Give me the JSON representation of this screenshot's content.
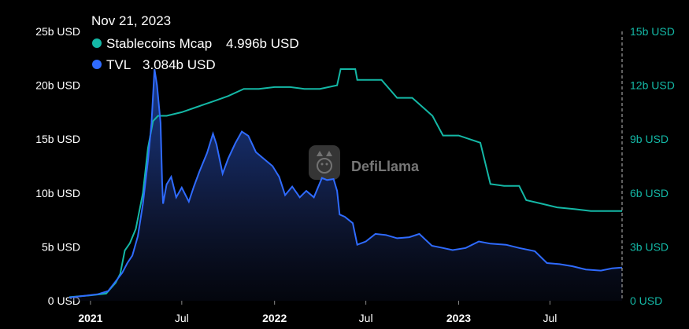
{
  "tooltip": {
    "date": "Nov 21, 2023",
    "items": [
      {
        "label": "Stablecoins Mcap",
        "value": "4.996b USD",
        "color": "#14b8a6"
      },
      {
        "label": "TVL",
        "value": "3.084b USD",
        "color": "#2f6bff"
      }
    ]
  },
  "watermark": {
    "text": "DefiLlama"
  },
  "colors": {
    "tvl": "#2f6bff",
    "stablecoins": "#14b8a6",
    "left_axis_text": "#ffffff",
    "right_axis_text": "#14b8a6"
  },
  "chart_data": {
    "type": "line",
    "x_axis": {
      "range": [
        "2020-11-20",
        "2023-11-21"
      ],
      "ticks": [
        {
          "date": "2021-01-01",
          "label": "2021",
          "bold": true
        },
        {
          "date": "2021-07-01",
          "label": "Jul",
          "bold": false
        },
        {
          "date": "2022-01-01",
          "label": "2022",
          "bold": true
        },
        {
          "date": "2022-07-01",
          "label": "Jul",
          "bold": false
        },
        {
          "date": "2023-01-01",
          "label": "2023",
          "bold": true
        },
        {
          "date": "2023-07-01",
          "label": "Jul",
          "bold": false
        }
      ]
    },
    "y_left": {
      "min": 0,
      "max": 25,
      "ticks": [
        {
          "value": 0,
          "label": "0 USD"
        },
        {
          "value": 5,
          "label": "5b USD"
        },
        {
          "value": 10,
          "label": "10b USD"
        },
        {
          "value": 15,
          "label": "15b USD"
        },
        {
          "value": 20,
          "label": "20b USD"
        },
        {
          "value": 25,
          "label": "25b USD"
        }
      ]
    },
    "y_right": {
      "min": 0,
      "max": 15,
      "ticks": [
        {
          "value": 0,
          "label": "0 USD"
        },
        {
          "value": 3,
          "label": "3b USD"
        },
        {
          "value": 6,
          "label": "6b USD"
        },
        {
          "value": 9,
          "label": "9b USD"
        },
        {
          "value": 12,
          "label": "12b USD"
        },
        {
          "value": 15,
          "label": "15b USD"
        }
      ]
    },
    "series": [
      {
        "name": "TVL",
        "axis": "left",
        "unit": "b USD",
        "points": [
          [
            "2020-11-20",
            0.3
          ],
          [
            "2020-12-20",
            0.45
          ],
          [
            "2021-01-15",
            0.6
          ],
          [
            "2021-02-05",
            0.9
          ],
          [
            "2021-02-20",
            1.8
          ],
          [
            "2021-03-05",
            2.6
          ],
          [
            "2021-03-15",
            3.5
          ],
          [
            "2021-03-25",
            4.2
          ],
          [
            "2021-04-05",
            6.0
          ],
          [
            "2021-04-15",
            9.0
          ],
          [
            "2021-04-25",
            13.0
          ],
          [
            "2021-05-02",
            16.5
          ],
          [
            "2021-05-08",
            21.5
          ],
          [
            "2021-05-13",
            20.0
          ],
          [
            "2021-05-20",
            16.5
          ],
          [
            "2021-05-23",
            11.0
          ],
          [
            "2021-05-25",
            9.0
          ],
          [
            "2021-06-01",
            10.8
          ],
          [
            "2021-06-10",
            11.5
          ],
          [
            "2021-06-20",
            9.6
          ],
          [
            "2021-07-01",
            10.5
          ],
          [
            "2021-07-15",
            9.2
          ],
          [
            "2021-07-25",
            10.6
          ],
          [
            "2021-08-05",
            12.0
          ],
          [
            "2021-08-20",
            13.7
          ],
          [
            "2021-09-01",
            15.5
          ],
          [
            "2021-09-08",
            14.5
          ],
          [
            "2021-09-20",
            11.8
          ],
          [
            "2021-10-01",
            13.2
          ],
          [
            "2021-10-15",
            14.6
          ],
          [
            "2021-10-28",
            15.7
          ],
          [
            "2021-11-10",
            15.3
          ],
          [
            "2021-11-25",
            13.8
          ],
          [
            "2021-12-10",
            13.2
          ],
          [
            "2021-12-28",
            12.5
          ],
          [
            "2022-01-10",
            11.5
          ],
          [
            "2022-01-22",
            9.8
          ],
          [
            "2022-02-05",
            10.6
          ],
          [
            "2022-02-20",
            9.6
          ],
          [
            "2022-03-05",
            10.2
          ],
          [
            "2022-03-20",
            9.6
          ],
          [
            "2022-04-05",
            11.4
          ],
          [
            "2022-04-15",
            11.2
          ],
          [
            "2022-04-28",
            11.3
          ],
          [
            "2022-05-05",
            10.2
          ],
          [
            "2022-05-10",
            8.0
          ],
          [
            "2022-05-20",
            7.8
          ],
          [
            "2022-06-05",
            7.2
          ],
          [
            "2022-06-14",
            5.2
          ],
          [
            "2022-07-01",
            5.5
          ],
          [
            "2022-07-20",
            6.2
          ],
          [
            "2022-08-10",
            6.1
          ],
          [
            "2022-09-01",
            5.8
          ],
          [
            "2022-09-25",
            5.9
          ],
          [
            "2022-10-15",
            6.2
          ],
          [
            "2022-11-09",
            5.1
          ],
          [
            "2022-12-01",
            4.9
          ],
          [
            "2022-12-20",
            4.7
          ],
          [
            "2023-01-15",
            4.9
          ],
          [
            "2023-02-10",
            5.5
          ],
          [
            "2023-03-05",
            5.3
          ],
          [
            "2023-04-05",
            5.2
          ],
          [
            "2023-05-01",
            4.9
          ],
          [
            "2023-06-01",
            4.6
          ],
          [
            "2023-06-25",
            3.5
          ],
          [
            "2023-07-20",
            3.4
          ],
          [
            "2023-08-15",
            3.2
          ],
          [
            "2023-09-10",
            2.9
          ],
          [
            "2023-10-10",
            2.8
          ],
          [
            "2023-11-01",
            3.0
          ],
          [
            "2023-11-21",
            3.084
          ]
        ]
      },
      {
        "name": "Stablecoins Mcap",
        "axis": "right",
        "unit": "b USD",
        "points": [
          [
            "2020-11-20",
            0.2
          ],
          [
            "2021-01-01",
            0.3
          ],
          [
            "2021-02-01",
            0.4
          ],
          [
            "2021-02-20",
            1.0
          ],
          [
            "2021-03-01",
            1.5
          ],
          [
            "2021-03-10",
            2.8
          ],
          [
            "2021-03-20",
            3.2
          ],
          [
            "2021-04-01",
            4.0
          ],
          [
            "2021-04-15",
            6.0
          ],
          [
            "2021-04-25",
            8.5
          ],
          [
            "2021-05-05",
            10.0
          ],
          [
            "2021-05-15",
            10.3
          ],
          [
            "2021-06-01",
            10.3
          ],
          [
            "2021-07-01",
            10.5
          ],
          [
            "2021-08-01",
            10.8
          ],
          [
            "2021-09-01",
            11.1
          ],
          [
            "2021-10-01",
            11.4
          ],
          [
            "2021-11-01",
            11.8
          ],
          [
            "2021-12-01",
            11.8
          ],
          [
            "2022-01-01",
            11.9
          ],
          [
            "2022-02-01",
            11.9
          ],
          [
            "2022-03-01",
            11.8
          ],
          [
            "2022-04-01",
            11.8
          ],
          [
            "2022-05-05",
            12.0
          ],
          [
            "2022-05-12",
            12.9
          ],
          [
            "2022-06-10",
            12.9
          ],
          [
            "2022-06-14",
            12.3
          ],
          [
            "2022-08-01",
            12.3
          ],
          [
            "2022-09-01",
            11.3
          ],
          [
            "2022-10-01",
            11.3
          ],
          [
            "2022-11-10",
            10.3
          ],
          [
            "2022-12-01",
            9.2
          ],
          [
            "2023-01-01",
            9.2
          ],
          [
            "2023-02-13",
            8.8
          ],
          [
            "2023-03-05",
            6.5
          ],
          [
            "2023-04-01",
            6.4
          ],
          [
            "2023-05-01",
            6.4
          ],
          [
            "2023-05-15",
            5.6
          ],
          [
            "2023-06-15",
            5.4
          ],
          [
            "2023-07-15",
            5.2
          ],
          [
            "2023-08-20",
            5.1
          ],
          [
            "2023-09-20",
            5.0
          ],
          [
            "2023-11-21",
            4.996
          ]
        ]
      }
    ]
  }
}
